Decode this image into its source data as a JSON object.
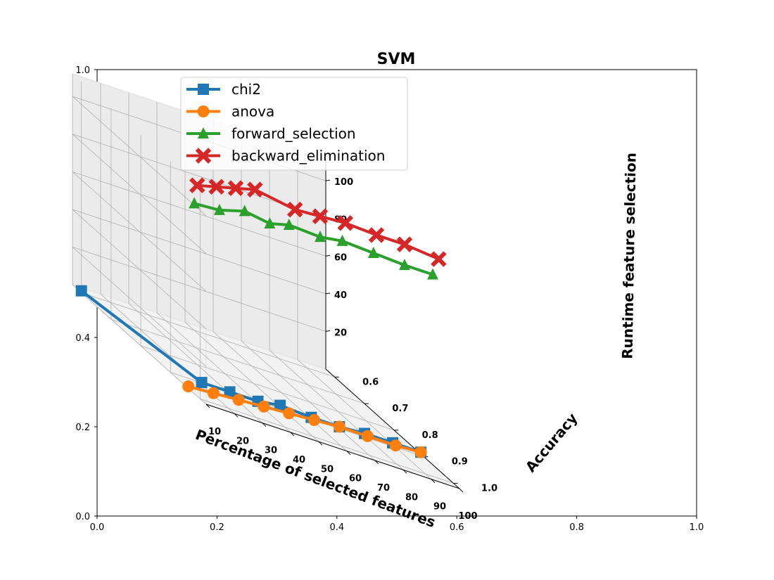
{
  "chart_data": {
    "type": "line",
    "projection": "3d",
    "title": "SVM",
    "xlabel": "Percentage of selected features",
    "ylabel": "Accuracy",
    "zlabel": "Runtime feature selection",
    "xticks": [
      10,
      20,
      30,
      40,
      50,
      60,
      70,
      80,
      90,
      100
    ],
    "yticks": [
      0.6,
      0.7,
      0.8,
      0.9,
      1.0
    ],
    "zticks": [
      20,
      40,
      60,
      80,
      100
    ],
    "xlim": [
      10,
      100
    ],
    "ylim": [
      0.57,
      1.02
    ],
    "zlim": [
      0,
      112
    ],
    "outer_axes": {
      "xticks": [
        "0.0",
        "0.2",
        "0.4",
        "0.6",
        "0.8",
        "1.0"
      ],
      "yticks": [
        "0.0",
        "0.2",
        "0.4",
        "0.6",
        "0.8",
        "1.0"
      ]
    },
    "legend_position": "upper-left",
    "grid": true,
    "x": [
      10,
      20,
      30,
      40,
      50,
      60,
      70,
      80,
      90,
      100
    ],
    "series": [
      {
        "name": "chi2",
        "color": "#1f77b4",
        "marker": "square",
        "accuracy": [
          0.6,
          0.91,
          0.91,
          0.91,
          0.89,
          0.9,
          0.9,
          0.89,
          0.89,
          0.89
        ],
        "runtime": [
          1,
          1,
          1,
          1,
          1,
          1,
          1,
          1,
          1,
          1
        ]
      },
      {
        "name": "anova",
        "color": "#ff7f0e",
        "marker": "circle",
        "accuracy": [
          0.96,
          0.95,
          0.94,
          0.93,
          0.92,
          0.91,
          0.9,
          0.9,
          0.9,
          0.89
        ],
        "runtime": [
          1,
          1,
          1,
          1,
          1,
          1,
          1,
          1,
          1,
          1
        ]
      },
      {
        "name": "forward_selection",
        "color": "#2ca02c",
        "marker": "triangle",
        "accuracy": [
          0.98,
          0.97,
          0.96,
          0.95,
          0.92,
          0.93,
          0.91,
          0.92,
          0.93,
          0.93
        ],
        "runtime": [
          101,
          101,
          104,
          101,
          101,
          101,
          101,
          101,
          101,
          101
        ]
      },
      {
        "name": "backward_elimination",
        "color": "#d62728",
        "marker": "x",
        "accuracy": [
          0.99,
          0.96,
          0.93,
          0.9,
          0.94,
          0.93,
          0.92,
          0.93,
          0.93,
          0.95
        ],
        "runtime": [
          112,
          112,
          112,
          112,
          112,
          112,
          112,
          112,
          112,
          112
        ]
      }
    ]
  }
}
